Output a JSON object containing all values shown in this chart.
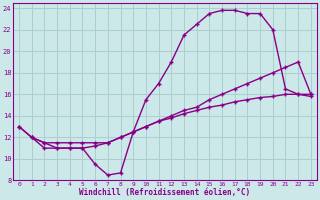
{
  "title": "",
  "xlabel": "Windchill (Refroidissement éolien,°C)",
  "ylabel": "",
  "bg_color": "#cce8e8",
  "grid_color": "#aacfcf",
  "line_color": "#880088",
  "marker": "+",
  "xlim": [
    -0.5,
    23.5
  ],
  "ylim": [
    8,
    24.5
  ],
  "yticks": [
    8,
    10,
    12,
    14,
    16,
    18,
    20,
    22,
    24
  ],
  "xticks": [
    0,
    1,
    2,
    3,
    4,
    5,
    6,
    7,
    8,
    9,
    10,
    11,
    12,
    13,
    14,
    15,
    16,
    17,
    18,
    19,
    20,
    21,
    22,
    23
  ],
  "line1_x": [
    0,
    1,
    2,
    3,
    4,
    5,
    6,
    7,
    8,
    9,
    10,
    11,
    12,
    13,
    14,
    15,
    16,
    17,
    18,
    19,
    20,
    21,
    22,
    23
  ],
  "line1_y": [
    13.0,
    12.0,
    11.0,
    11.0,
    11.0,
    11.0,
    9.5,
    8.5,
    8.7,
    12.5,
    15.5,
    17.0,
    19.0,
    21.5,
    22.5,
    23.5,
    23.8,
    23.8,
    23.5,
    23.5,
    22.0,
    16.5,
    16.0,
    15.8
  ],
  "line2_x": [
    0,
    1,
    2,
    3,
    4,
    5,
    6,
    7,
    8,
    9,
    10,
    11,
    12,
    13,
    14,
    15,
    16,
    17,
    18,
    19,
    20,
    21,
    22,
    23
  ],
  "line2_y": [
    13.0,
    12.0,
    11.5,
    11.5,
    11.5,
    11.5,
    11.5,
    11.5,
    12.0,
    12.5,
    13.0,
    13.5,
    14.0,
    14.5,
    14.8,
    15.5,
    16.0,
    16.5,
    17.0,
    17.5,
    18.0,
    18.5,
    19.0,
    16.0
  ],
  "line3_x": [
    1,
    2,
    3,
    4,
    5,
    6,
    7,
    8,
    9,
    10,
    11,
    12,
    13,
    14,
    15,
    16,
    17,
    18,
    19,
    20,
    21,
    22,
    23
  ],
  "line3_y": [
    12.0,
    11.5,
    11.0,
    11.0,
    11.0,
    11.2,
    11.5,
    12.0,
    12.5,
    13.0,
    13.5,
    13.8,
    14.2,
    14.5,
    14.8,
    15.0,
    15.3,
    15.5,
    15.7,
    15.8,
    16.0,
    16.0,
    16.0
  ]
}
